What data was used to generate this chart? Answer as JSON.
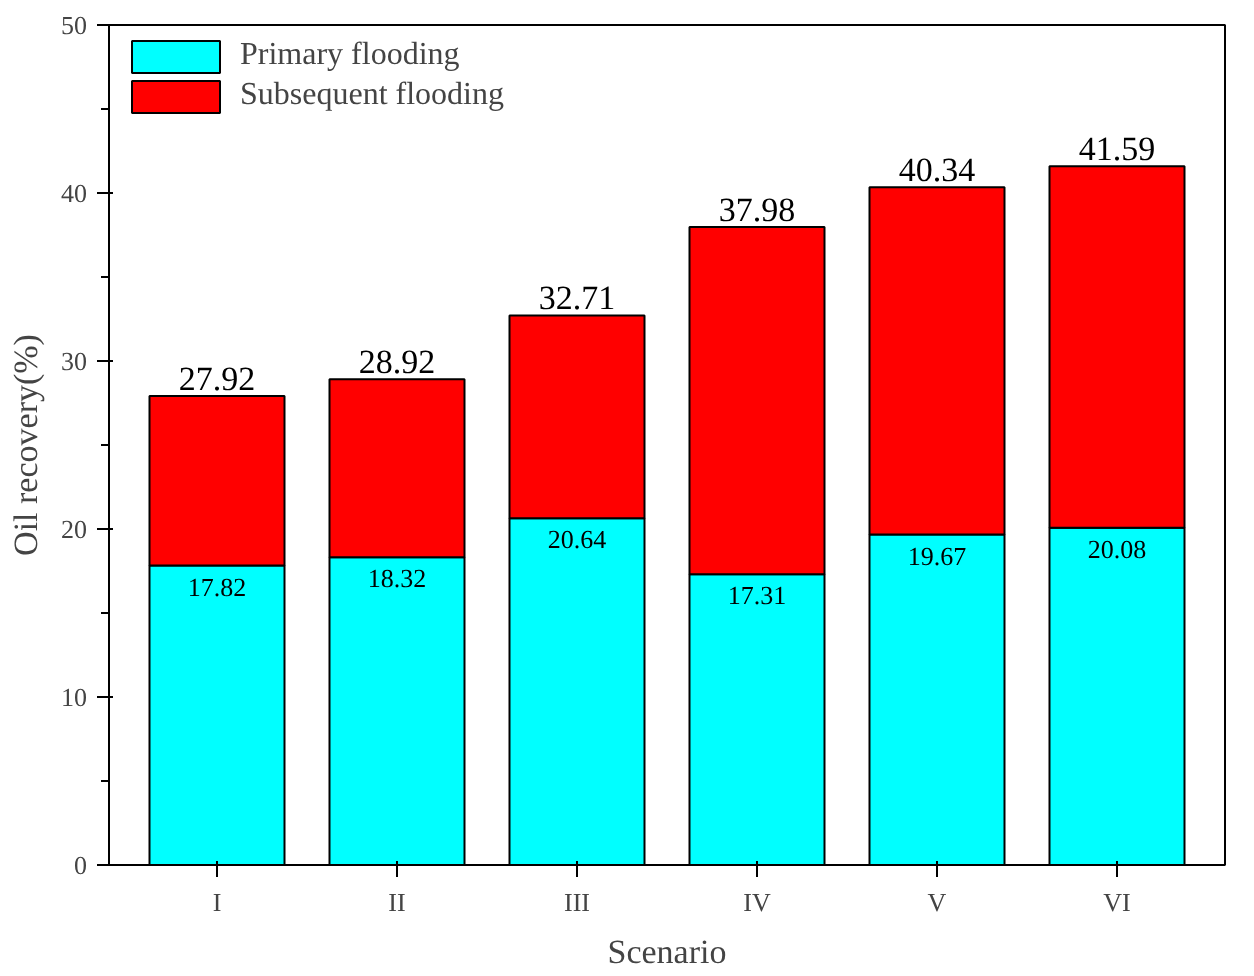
{
  "chart_data": {
    "type": "bar",
    "stacked": true,
    "xlabel": "Scenario",
    "ylabel": "Oil recovery(%)",
    "categories": [
      "I",
      "II",
      "III",
      "IV",
      "V",
      "VI"
    ],
    "ylim": [
      0,
      50
    ],
    "yticks": [
      0,
      10,
      20,
      30,
      40,
      50
    ],
    "legend": "top left",
    "grid": false,
    "series": [
      {
        "name": "Primary flooding",
        "color": "#00ffff",
        "values": [
          17.82,
          18.32,
          20.64,
          17.31,
          19.67,
          20.08
        ],
        "value_labels": [
          "17.82",
          "18.32",
          "20.64",
          "17.31",
          "19.67",
          "20.08"
        ]
      },
      {
        "name": "Subsequent flooding",
        "color": "#ff0000",
        "values": [
          10.1,
          10.6,
          12.07,
          20.67,
          20.67,
          21.51
        ]
      }
    ],
    "totals": [
      "27.92",
      "28.92",
      "32.71",
      "37.98",
      "40.34",
      "41.59"
    ]
  }
}
